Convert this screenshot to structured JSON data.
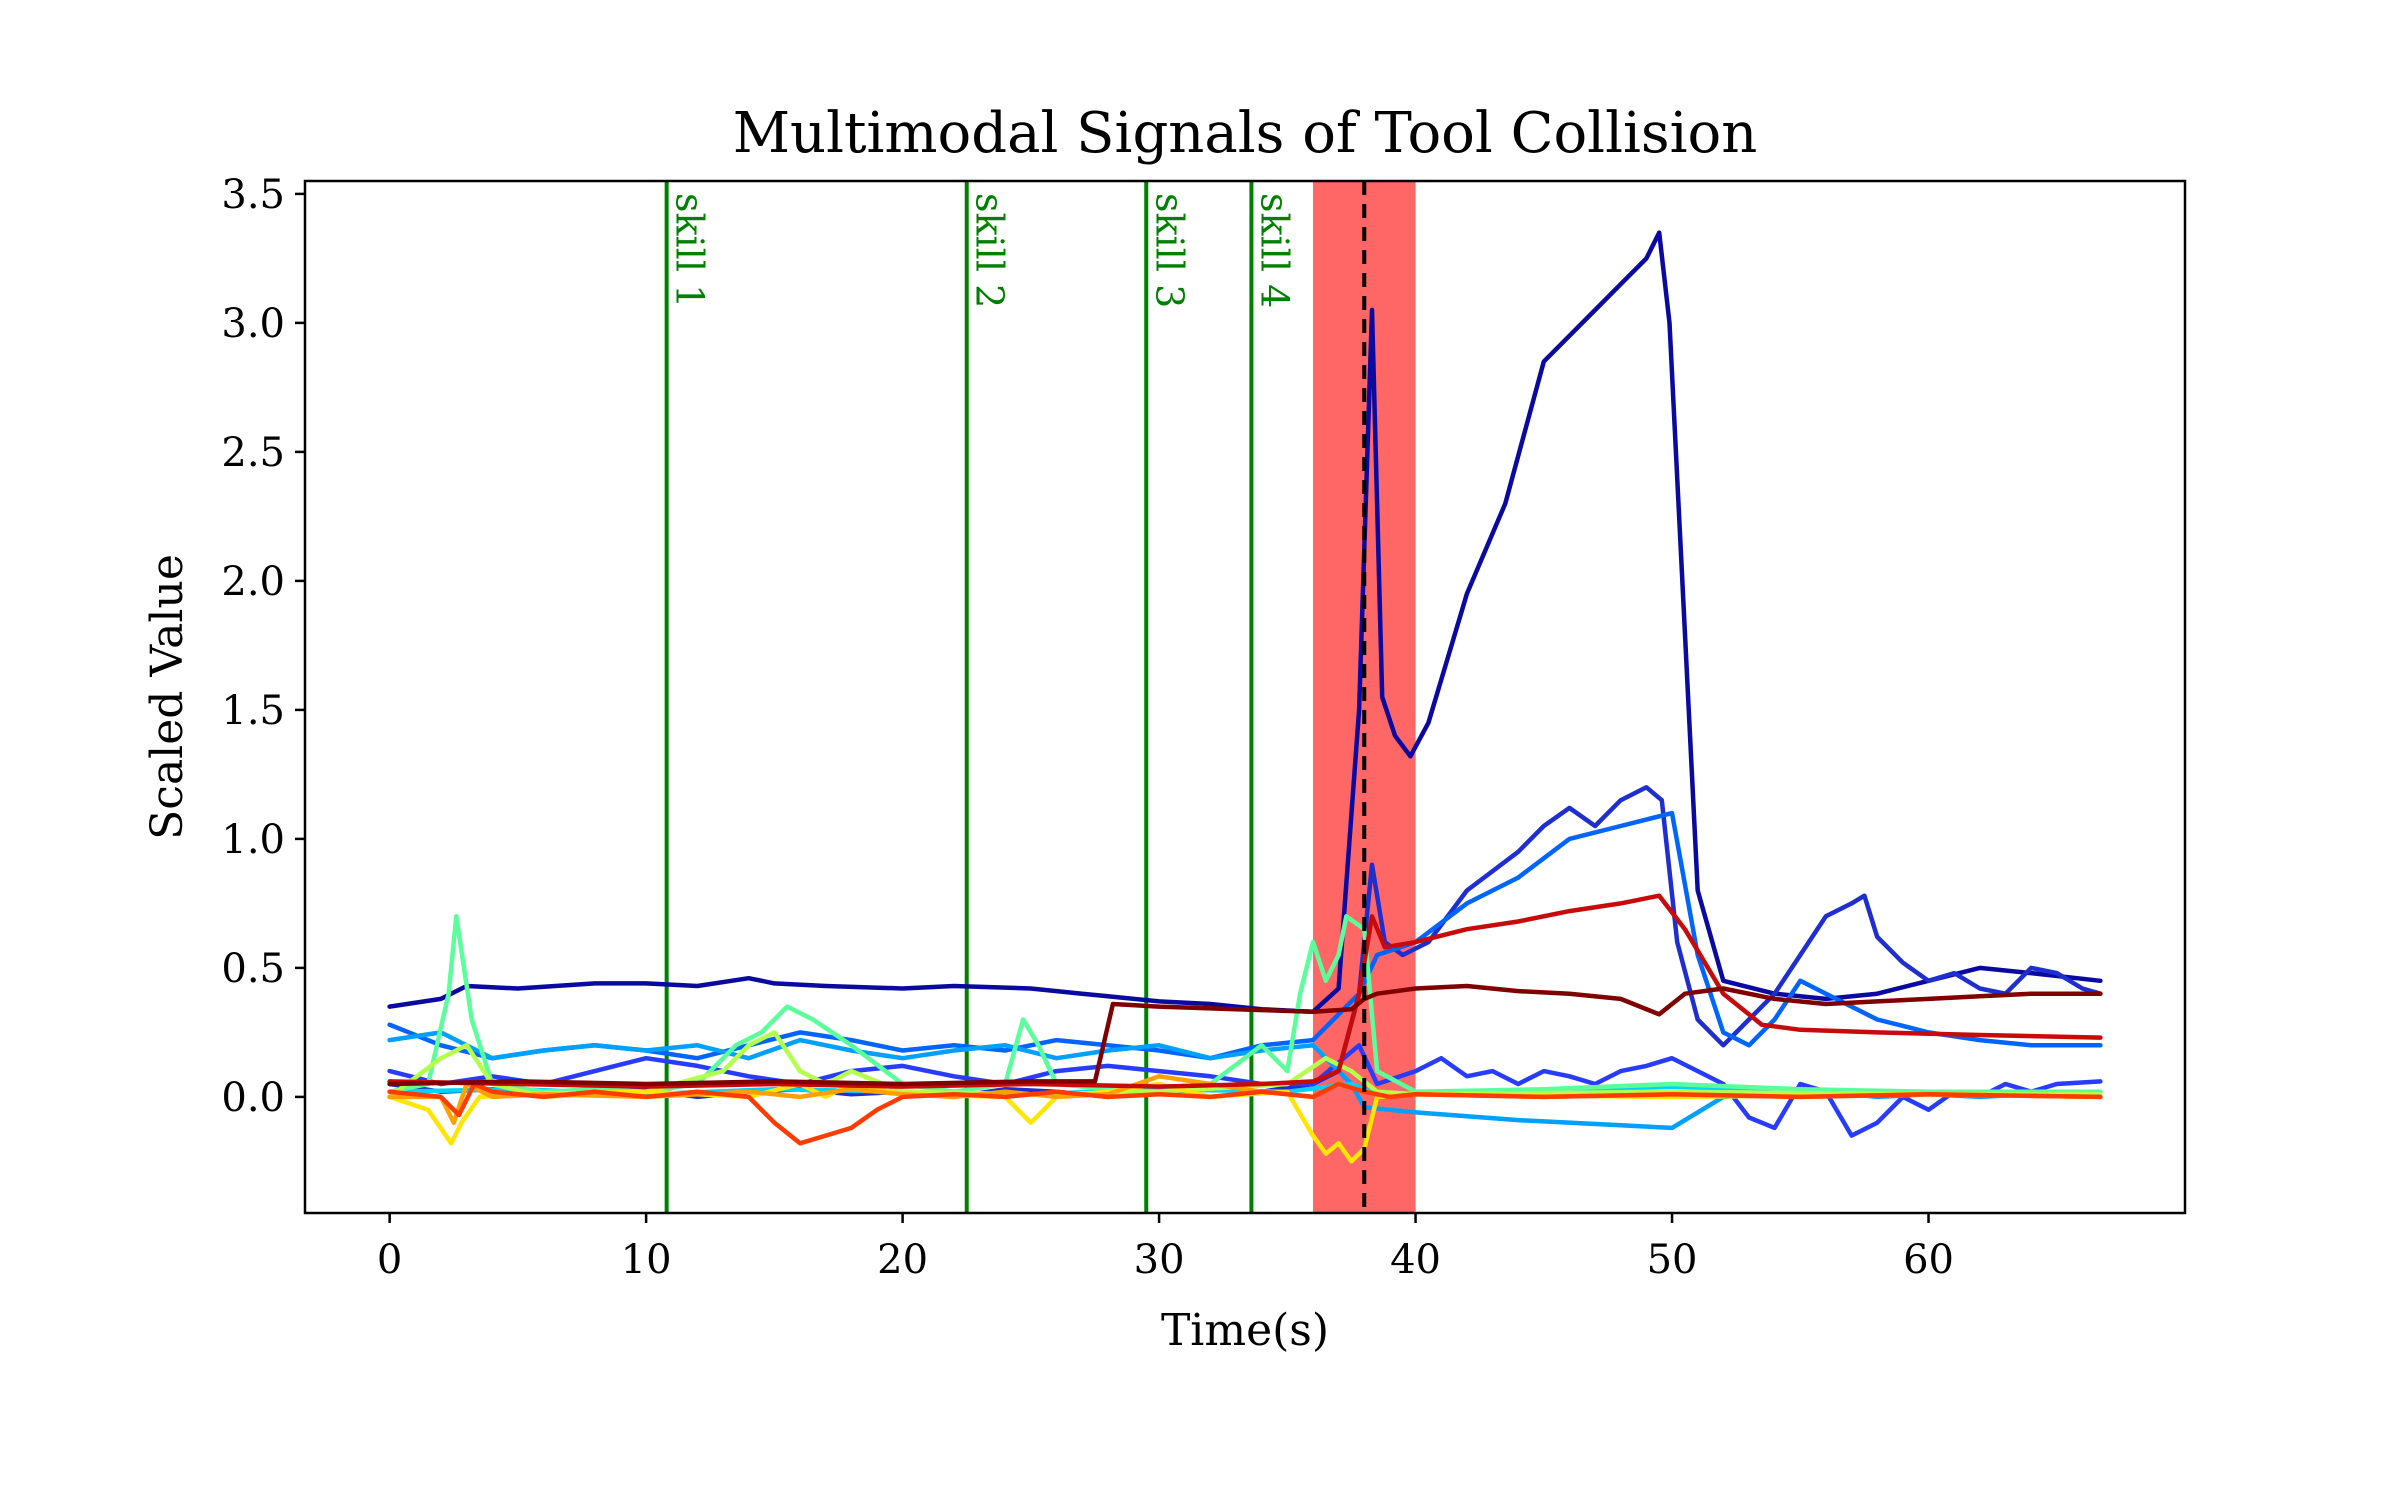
{
  "chart_data": {
    "type": "line",
    "title": "Multimodal Signals of Tool Collision",
    "xlabel": "Time(s)",
    "ylabel": "Scaled Value",
    "xlim": [
      -3.3,
      70
    ],
    "ylim": [
      -0.45,
      3.55
    ],
    "x_ticks": [
      0,
      10,
      20,
      30,
      40,
      50,
      60
    ],
    "x_tick_labels": [
      "0",
      "10",
      "20",
      "30",
      "40",
      "50",
      "60"
    ],
    "y_ticks": [
      0.0,
      0.5,
      1.0,
      1.5,
      2.0,
      2.5,
      3.0,
      3.5
    ],
    "y_tick_labels": [
      "0.0",
      "0.5",
      "1.0",
      "1.5",
      "2.0",
      "2.5",
      "3.0",
      "3.5"
    ],
    "grid": false,
    "skills": [
      {
        "x": 10.8,
        "label": "skill 1"
      },
      {
        "x": 22.5,
        "label": "skill 2"
      },
      {
        "x": 29.5,
        "label": "skill 3"
      },
      {
        "x": 33.6,
        "label": "skill 4"
      }
    ],
    "skill_color": "#008000",
    "highlight_span": {
      "x0": 36.0,
      "x1": 40.0,
      "color": "#ff6666"
    },
    "event_line": {
      "x": 38.0,
      "color": "#000000",
      "style": "dashed"
    },
    "series": [
      {
        "color": "#0a0aa0",
        "x": [
          0,
          2,
          3,
          5,
          8,
          10,
          12,
          14,
          15,
          17,
          20,
          22,
          25,
          27,
          28,
          30,
          32,
          34,
          36,
          37,
          37.8,
          38.3,
          38.7,
          39.2,
          39.8,
          40.5,
          42,
          43.5,
          45,
          46,
          47,
          48,
          49,
          49.5,
          49.9,
          50.5,
          51,
          52,
          54,
          56,
          58,
          60,
          62,
          64,
          66.7
        ],
        "y": [
          0.35,
          0.38,
          0.43,
          0.42,
          0.44,
          0.44,
          0.43,
          0.46,
          0.44,
          0.43,
          0.42,
          0.43,
          0.42,
          0.4,
          0.39,
          0.37,
          0.36,
          0.34,
          0.33,
          0.42,
          1.5,
          3.05,
          1.55,
          1.4,
          1.32,
          1.45,
          1.95,
          2.3,
          2.85,
          2.95,
          3.05,
          3.15,
          3.25,
          3.35,
          3.0,
          1.8,
          0.8,
          0.45,
          0.4,
          0.38,
          0.4,
          0.45,
          0.5,
          0.48,
          0.45
        ]
      },
      {
        "color": "#1e2ed0",
        "x": [
          0,
          2,
          4,
          6,
          8,
          10,
          12,
          14,
          16,
          18,
          20,
          22,
          24,
          26,
          28,
          30,
          32,
          34,
          36,
          37,
          37.8,
          38.3,
          38.8,
          39.5,
          40.5,
          42,
          44,
          45,
          46,
          47,
          48,
          49,
          49.6,
          50.2,
          51,
          52,
          53,
          54,
          55,
          56,
          57,
          57.5,
          58,
          59,
          60,
          61,
          62,
          63,
          64,
          65,
          66,
          66.7
        ],
        "y": [
          0.05,
          0.02,
          0.03,
          0.01,
          0.02,
          0.03,
          0.0,
          0.02,
          0.03,
          0.01,
          0.02,
          0.0,
          0.03,
          0.02,
          0.0,
          0.02,
          0.03,
          0.02,
          0.05,
          0.1,
          0.4,
          0.9,
          0.6,
          0.55,
          0.6,
          0.8,
          0.95,
          1.05,
          1.12,
          1.05,
          1.15,
          1.2,
          1.15,
          0.6,
          0.3,
          0.2,
          0.3,
          0.4,
          0.55,
          0.7,
          0.75,
          0.78,
          0.62,
          0.52,
          0.45,
          0.48,
          0.42,
          0.4,
          0.5,
          0.48,
          0.42,
          0.4
        ]
      },
      {
        "color": "#283cff",
        "x": [
          0,
          2,
          4,
          6,
          8,
          10,
          12,
          14,
          16,
          18,
          20,
          22,
          24,
          26,
          28,
          30,
          32,
          34,
          36,
          37.8,
          38.5,
          40,
          41,
          42,
          43,
          44,
          45,
          46,
          47,
          48,
          49,
          50,
          51,
          52,
          53,
          54,
          55,
          56,
          57,
          58,
          59,
          60,
          61,
          62,
          63,
          64,
          65,
          66.7
        ],
        "y": [
          0.1,
          0.05,
          0.08,
          0.05,
          0.1,
          0.15,
          0.12,
          0.08,
          0.05,
          0.1,
          0.12,
          0.08,
          0.05,
          0.1,
          0.12,
          0.1,
          0.08,
          0.05,
          0.05,
          0.2,
          0.05,
          0.1,
          0.15,
          0.08,
          0.1,
          0.05,
          0.1,
          0.08,
          0.05,
          0.1,
          0.12,
          0.15,
          0.1,
          0.05,
          -0.08,
          -0.12,
          0.05,
          0.02,
          -0.15,
          -0.1,
          0.0,
          -0.05,
          0.02,
          0.0,
          0.05,
          0.02,
          0.05,
          0.06
        ]
      },
      {
        "color": "#0064ff",
        "x": [
          0,
          2,
          4,
          6,
          8,
          10,
          12,
          14,
          16,
          18,
          20,
          22,
          24,
          26,
          28,
          30,
          32,
          34,
          36,
          37.8,
          38.5,
          40,
          42,
          44,
          46,
          48,
          50,
          51,
          52,
          53,
          54,
          55,
          56,
          58,
          60,
          62,
          64,
          66.7
        ],
        "y": [
          0.28,
          0.2,
          0.15,
          0.18,
          0.2,
          0.18,
          0.15,
          0.2,
          0.25,
          0.22,
          0.18,
          0.2,
          0.18,
          0.22,
          0.2,
          0.18,
          0.15,
          0.2,
          0.22,
          0.4,
          0.55,
          0.6,
          0.75,
          0.85,
          1.0,
          1.05,
          1.1,
          0.55,
          0.25,
          0.2,
          0.3,
          0.45,
          0.4,
          0.3,
          0.25,
          0.22,
          0.2,
          0.2
        ]
      },
      {
        "color": "#00a0ff",
        "x": [
          0,
          2,
          4,
          6,
          8,
          10,
          12,
          14,
          16,
          18,
          20,
          22,
          24,
          26,
          28,
          30,
          32,
          34,
          36,
          37.5,
          38,
          40,
          44,
          48,
          50,
          52,
          54,
          56,
          58,
          60,
          62,
          64,
          66.7
        ],
        "y": [
          0.22,
          0.25,
          0.15,
          0.18,
          0.2,
          0.18,
          0.2,
          0.15,
          0.22,
          0.18,
          0.15,
          0.18,
          0.2,
          0.15,
          0.18,
          0.2,
          0.15,
          0.18,
          0.2,
          0.05,
          -0.04,
          -0.06,
          -0.09,
          -0.11,
          -0.12,
          0.0,
          0.01,
          0.02,
          0.0,
          0.01,
          0.0,
          0.01,
          0.0
        ]
      },
      {
        "color": "#00d2ff",
        "x": [
          0,
          5,
          10,
          15,
          20,
          25,
          30,
          35,
          37.5,
          38.5,
          45,
          50,
          55,
          60,
          66.7
        ],
        "y": [
          0.02,
          0.03,
          0.01,
          0.03,
          0.02,
          0.01,
          0.03,
          0.02,
          0.05,
          0.01,
          0.02,
          0.04,
          0.02,
          0.01,
          0.02
        ]
      },
      {
        "color": "#5aff9b",
        "x": [
          0,
          1.5,
          2.3,
          2.6,
          3.2,
          4,
          6,
          8,
          10,
          12,
          13.5,
          14.5,
          15.5,
          16.5,
          18,
          20,
          22,
          24,
          24.7,
          25.3,
          26,
          28,
          30,
          32,
          34,
          35,
          35.5,
          36,
          36.5,
          37,
          37.3,
          38,
          38.5,
          40,
          45,
          50,
          55,
          60,
          66.7
        ],
        "y": [
          0.02,
          0.05,
          0.4,
          0.7,
          0.3,
          0.05,
          0.02,
          0.03,
          0.02,
          0.05,
          0.2,
          0.25,
          0.35,
          0.3,
          0.2,
          0.05,
          0.02,
          0.05,
          0.3,
          0.2,
          0.05,
          0.03,
          0.02,
          0.05,
          0.2,
          0.1,
          0.4,
          0.6,
          0.45,
          0.55,
          0.7,
          0.65,
          0.1,
          0.02,
          0.03,
          0.05,
          0.03,
          0.02,
          0.02
        ]
      },
      {
        "color": "#b4ff4b",
        "x": [
          0,
          2,
          3,
          4,
          6,
          10,
          13,
          14,
          15,
          16,
          17,
          18,
          20,
          25,
          30,
          35,
          36.5,
          37.5,
          38.5,
          40,
          50,
          60,
          66.7
        ],
        "y": [
          0.0,
          0.15,
          0.2,
          0.05,
          0.0,
          0.02,
          0.1,
          0.2,
          0.25,
          0.1,
          0.05,
          0.1,
          0.02,
          0.01,
          0.02,
          0.05,
          0.15,
          0.1,
          0.02,
          0.01,
          0.02,
          0.01,
          0.01
        ]
      },
      {
        "color": "#ffe600",
        "x": [
          0,
          1.5,
          2.4,
          2.8,
          3.5,
          5,
          10,
          14,
          16,
          17,
          18,
          20,
          24,
          25,
          26,
          28,
          30,
          32,
          35,
          36,
          36.5,
          37,
          37.5,
          38,
          38.5,
          40,
          50,
          60,
          66.7
        ],
        "y": [
          0.0,
          -0.05,
          -0.18,
          -0.1,
          0.0,
          0.01,
          0.02,
          0.0,
          0.05,
          0.0,
          0.05,
          0.01,
          0.0,
          -0.1,
          0.0,
          0.02,
          0.05,
          0.0,
          0.02,
          -0.15,
          -0.22,
          -0.18,
          -0.25,
          -0.2,
          0.0,
          0.01,
          0.0,
          0.01,
          0.0
        ]
      },
      {
        "color": "#ffa000",
        "x": [
          0,
          2,
          2.5,
          3,
          4,
          6,
          10,
          14,
          16,
          18,
          20,
          22,
          24,
          26,
          28,
          30,
          32,
          34,
          36,
          37,
          38,
          39,
          40,
          45,
          50,
          55,
          60,
          66.7
        ],
        "y": [
          0.0,
          0.0,
          -0.1,
          0.05,
          0.0,
          0.01,
          0.0,
          0.02,
          0.0,
          0.03,
          0.01,
          0.0,
          0.02,
          0.0,
          0.01,
          0.08,
          0.05,
          0.02,
          0.0,
          0.05,
          0.02,
          0.0,
          0.01,
          0.0,
          0.01,
          0.0,
          0.01,
          0.0
        ]
      },
      {
        "color": "#ff3c00",
        "x": [
          0,
          2,
          2.7,
          3.3,
          4,
          6,
          8,
          10,
          12,
          14,
          15,
          16,
          17,
          18,
          19,
          20,
          22,
          24,
          26,
          28,
          30,
          32,
          34,
          36,
          37,
          38,
          39,
          40,
          45,
          50,
          55,
          60,
          66.7
        ],
        "y": [
          0.02,
          0.0,
          -0.07,
          0.05,
          0.02,
          0.0,
          0.02,
          0.0,
          0.02,
          0.0,
          -0.1,
          -0.18,
          -0.15,
          -0.12,
          -0.05,
          0.0,
          0.01,
          0.0,
          0.02,
          0.0,
          0.01,
          0.0,
          0.02,
          0.0,
          0.05,
          0.02,
          0.0,
          0.01,
          0.0,
          0.01,
          0.0,
          0.01,
          0.0
        ]
      },
      {
        "color": "#c80a0a",
        "x": [
          0,
          5,
          10,
          15,
          20,
          25,
          30,
          34,
          36,
          37,
          37.8,
          38.3,
          38.8,
          40,
          42,
          44,
          46,
          48,
          49.5,
          50.5,
          52,
          53.5,
          55,
          58,
          62,
          66.7
        ],
        "y": [
          0.06,
          0.05,
          0.04,
          0.05,
          0.04,
          0.05,
          0.04,
          0.05,
          0.06,
          0.1,
          0.4,
          0.7,
          0.58,
          0.6,
          0.65,
          0.68,
          0.72,
          0.75,
          0.78,
          0.65,
          0.4,
          0.28,
          0.26,
          0.25,
          0.24,
          0.23
        ]
      },
      {
        "color": "#800000",
        "x": [
          0,
          5,
          10,
          15,
          20,
          25,
          27.5,
          28.2,
          30,
          33,
          36,
          37.5,
          38,
          38.5,
          40,
          42,
          44,
          46,
          48,
          49.5,
          50.5,
          52,
          54,
          56,
          58,
          60,
          62,
          64,
          66.7
        ],
        "y": [
          0.05,
          0.06,
          0.05,
          0.06,
          0.05,
          0.06,
          0.06,
          0.36,
          0.35,
          0.34,
          0.33,
          0.34,
          0.38,
          0.4,
          0.42,
          0.43,
          0.41,
          0.4,
          0.38,
          0.32,
          0.4,
          0.42,
          0.38,
          0.36,
          0.37,
          0.38,
          0.39,
          0.4,
          0.4
        ]
      }
    ]
  }
}
